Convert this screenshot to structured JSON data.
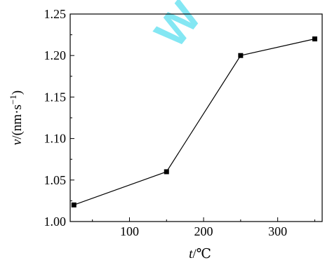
{
  "chart_data": {
    "type": "line",
    "title": "",
    "xlabel": {
      "var": "t",
      "unit": "/℃"
    },
    "ylabel": {
      "var": "v",
      "unit": "/(nm·s",
      "sup": "−1",
      "close": ")"
    },
    "xlim": [
      20,
      360
    ],
    "ylim": [
      1.0,
      1.25
    ],
    "xticks": [
      100,
      200,
      300
    ],
    "yticks": [
      1.0,
      1.05,
      1.1,
      1.15,
      1.2,
      1.25
    ],
    "ytick_labels": [
      "1.00",
      "1.05",
      "1.10",
      "1.15",
      "1.20",
      "1.25"
    ],
    "grid": false,
    "series": [
      {
        "x": [
          25,
          150,
          250,
          350
        ],
        "y": [
          1.02,
          1.06,
          1.2,
          1.22
        ],
        "marker": "square",
        "color": "#000000"
      }
    ]
  },
  "watermark": {
    "text": "W",
    "color": "#6fe3f2"
  }
}
